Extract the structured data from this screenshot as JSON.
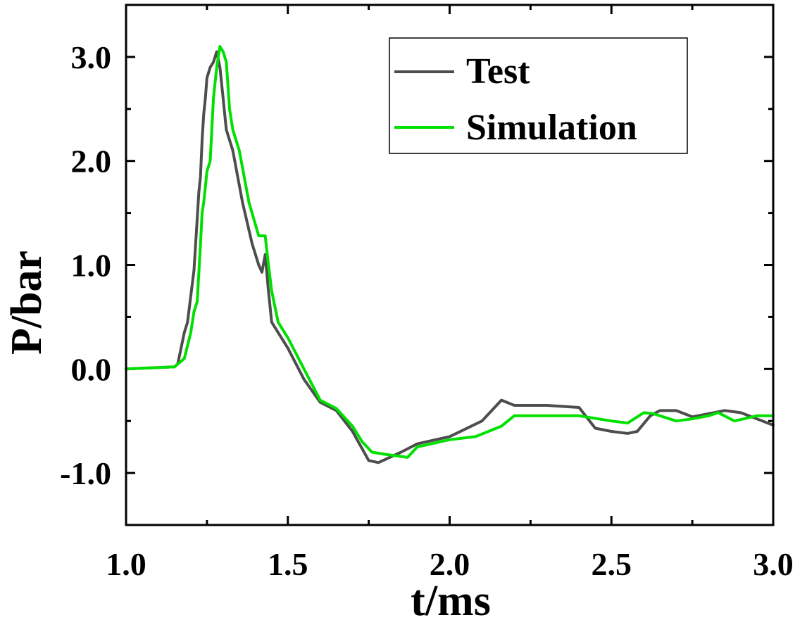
{
  "chart_data": {
    "type": "line",
    "title": "",
    "xlabel": "t/ms",
    "ylabel": "P/bar",
    "xlim": [
      1.0,
      3.0
    ],
    "ylim": [
      -1.5,
      3.5
    ],
    "xticks": [
      1.0,
      1.5,
      2.0,
      2.5,
      3.0
    ],
    "xtick_labels": [
      "1.0",
      "1.5",
      "2.0",
      "2.5",
      "3.0"
    ],
    "yticks": [
      -1.0,
      0.0,
      1.0,
      2.0,
      3.0
    ],
    "ytick_labels": [
      "-1.0",
      "0.0",
      "1.0",
      "2.0",
      "3.0"
    ],
    "grid": false,
    "legend_position": "top-right",
    "series": [
      {
        "name": "Test",
        "color": "#4d4d4d",
        "x": [
          1.0,
          1.15,
          1.16,
          1.18,
          1.19,
          1.2,
          1.21,
          1.215,
          1.22,
          1.225,
          1.23,
          1.235,
          1.24,
          1.245,
          1.25,
          1.255,
          1.26,
          1.27,
          1.28,
          1.29,
          1.3,
          1.305,
          1.31,
          1.33,
          1.36,
          1.39,
          1.41,
          1.42,
          1.43,
          1.44,
          1.45,
          1.5,
          1.55,
          1.6,
          1.65,
          1.7,
          1.75,
          1.78,
          1.85,
          1.9,
          2.0,
          2.1,
          2.16,
          2.2,
          2.3,
          2.4,
          2.45,
          2.5,
          2.55,
          2.58,
          2.62,
          2.65,
          2.7,
          2.75,
          2.85,
          2.9,
          3.0
        ],
        "values": [
          0.0,
          0.02,
          0.05,
          0.35,
          0.45,
          0.7,
          0.95,
          1.2,
          1.45,
          1.7,
          1.85,
          2.2,
          2.45,
          2.6,
          2.8,
          2.85,
          2.9,
          2.95,
          3.05,
          2.9,
          2.6,
          2.45,
          2.3,
          2.1,
          1.6,
          1.2,
          1.0,
          0.93,
          1.1,
          0.75,
          0.45,
          0.2,
          -0.1,
          -0.32,
          -0.4,
          -0.6,
          -0.88,
          -0.9,
          -0.8,
          -0.72,
          -0.65,
          -0.5,
          -0.3,
          -0.35,
          -0.35,
          -0.37,
          -0.57,
          -0.6,
          -0.62,
          -0.6,
          -0.45,
          -0.4,
          -0.4,
          -0.46,
          -0.4,
          -0.42,
          -0.54
        ]
      },
      {
        "name": "Simulation",
        "color": "#00e000",
        "x": [
          1.0,
          1.15,
          1.18,
          1.2,
          1.21,
          1.22,
          1.23,
          1.235,
          1.24,
          1.25,
          1.26,
          1.27,
          1.28,
          1.29,
          1.3,
          1.31,
          1.32,
          1.33,
          1.35,
          1.38,
          1.41,
          1.43,
          1.44,
          1.45,
          1.47,
          1.5,
          1.55,
          1.6,
          1.65,
          1.7,
          1.73,
          1.76,
          1.8,
          1.87,
          1.9,
          2.0,
          2.08,
          2.16,
          2.2,
          2.3,
          2.4,
          2.5,
          2.55,
          2.6,
          2.63,
          2.7,
          2.75,
          2.8,
          2.83,
          2.88,
          2.95,
          3.0
        ],
        "values": [
          0.0,
          0.02,
          0.1,
          0.35,
          0.55,
          0.65,
          1.2,
          1.5,
          1.6,
          1.9,
          2.0,
          2.6,
          2.9,
          3.1,
          3.05,
          2.95,
          2.5,
          2.3,
          2.1,
          1.6,
          1.28,
          1.28,
          1.0,
          0.75,
          0.45,
          0.3,
          0.0,
          -0.3,
          -0.38,
          -0.55,
          -0.7,
          -0.8,
          -0.82,
          -0.85,
          -0.75,
          -0.68,
          -0.65,
          -0.55,
          -0.45,
          -0.45,
          -0.45,
          -0.5,
          -0.52,
          -0.42,
          -0.43,
          -0.5,
          -0.48,
          -0.45,
          -0.42,
          -0.5,
          -0.45,
          -0.45
        ]
      }
    ]
  }
}
